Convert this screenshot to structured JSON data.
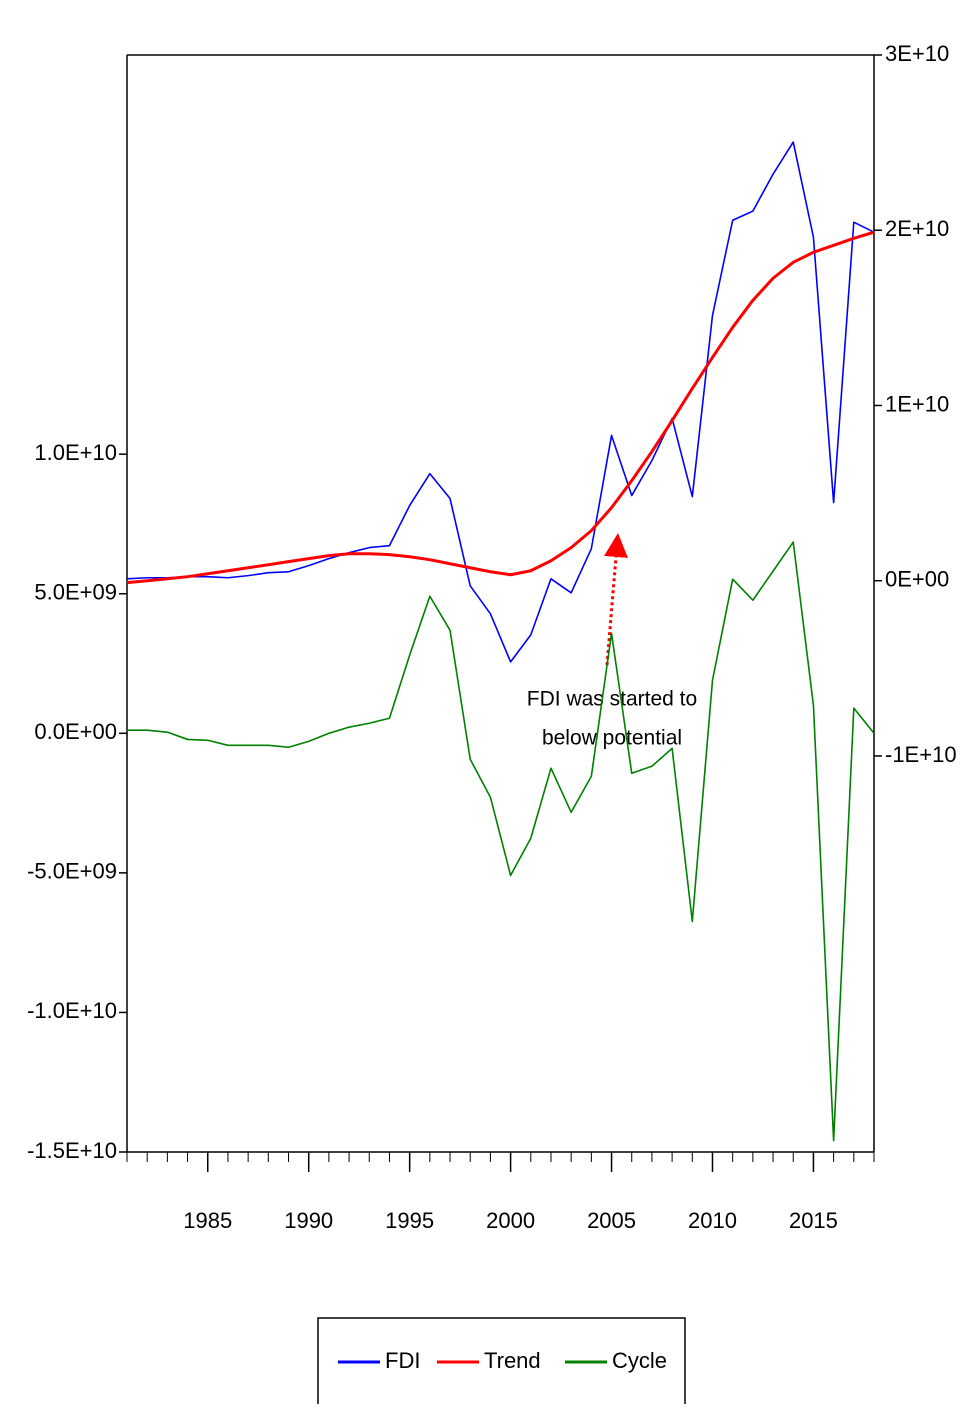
{
  "chart_data": {
    "type": "line",
    "x": [
      1981,
      1982,
      1983,
      1984,
      1985,
      1986,
      1987,
      1988,
      1989,
      1990,
      1991,
      1992,
      1993,
      1994,
      1995,
      1996,
      1997,
      1998,
      1999,
      2000,
      2001,
      2002,
      2003,
      2004,
      2005,
      2006,
      2007,
      2008,
      2009,
      2010,
      2011,
      2012,
      2013,
      2014,
      2015,
      2016,
      2017,
      2018
    ],
    "xlim": [
      1981,
      2018
    ],
    "xticks": [
      1985,
      1990,
      1995,
      2000,
      2005,
      2010,
      2015
    ],
    "ylim": [
      -15000000000.0,
      24300000000.0
    ],
    "yticks": [
      {
        "value": -15000000000.0,
        "label": "-1.5E+10"
      },
      {
        "value": -10000000000.0,
        "label": "-1.0E+10"
      },
      {
        "value": -5000000000.0,
        "label": "-5.0E+09"
      },
      {
        "value": 0,
        "label": "0.0E+00"
      },
      {
        "value": 5000000000.0,
        "label": "5.0E+09"
      },
      {
        "value": 10000000000.0,
        "label": "1.0E+10"
      }
    ],
    "y2lim": [
      -32600000000.0,
      30000000000.0
    ],
    "y2ticks": [
      {
        "value": -10000000000.0,
        "label": "-1E+10"
      },
      {
        "value": 0,
        "label": "0E+00"
      },
      {
        "value": 10000000000.0,
        "label": "1E+10"
      },
      {
        "value": 20000000000.0,
        "label": "2E+10"
      },
      {
        "value": 30000000000.0,
        "label": "3E+10"
      }
    ],
    "series": [
      {
        "name": "FDI",
        "color": "#0000ff",
        "axis": "y2",
        "values": [
          110000000.0,
          170000000.0,
          170000000.0,
          230000000.0,
          230000000.0,
          170000000.0,
          290000000.0,
          460000000.0,
          510000000.0,
          860000000.0,
          1260000000.0,
          1600000000.0,
          1890000000.0,
          2000000000.0,
          4290000000.0,
          6110000000.0,
          4690000000.0,
          -290000000.0,
          -1890000000.0,
          -4630000000.0,
          -3090000000.0,
          110000000.0,
          -690000000.0,
          1830000000.0,
          8290000000.0,
          4860000000.0,
          6860000000.0,
          9260000000.0,
          4800000000.0,
          15140000000.0,
          20570000000.0,
          21090000000.0,
          23200000000.0,
          25030000000.0,
          19600000000.0,
          4460000000.0,
          20460000000.0,
          19890000000.0
        ]
      },
      {
        "name": "Trend",
        "color": "#ff0000",
        "axis": "y2",
        "values": [
          -110000000.0,
          0,
          110000000.0,
          230000000.0,
          400000000.0,
          570000000.0,
          740000000.0,
          910000000.0,
          1090000000.0,
          1260000000.0,
          1430000000.0,
          1540000000.0,
          1540000000.0,
          1490000000.0,
          1370000000.0,
          1200000000.0,
          970000000.0,
          740000000.0,
          510000000.0,
          340000000.0,
          570000000.0,
          1140000000.0,
          1890000000.0,
          2860000000.0,
          4170000000.0,
          5710000000.0,
          7370000000.0,
          9140000000.0,
          10970000000.0,
          12740000000.0,
          14460000000.0,
          16000000000.0,
          17260000000.0,
          18170000000.0,
          18740000000.0,
          19140000000.0,
          19540000000.0,
          19890000000.0
        ]
      },
      {
        "name": "Cycle",
        "color": "#008000",
        "values": [
          110000000.0,
          110000000.0,
          40000000.0,
          -220000000.0,
          -250000000.0,
          -430000000.0,
          -430000000.0,
          -430000000.0,
          -500000000.0,
          -290000000.0,
          0,
          220000000.0,
          360000000.0,
          540000000.0,
          2800000000.0,
          4910000000.0,
          3690000000.0,
          -930000000.0,
          -2290000000.0,
          -5090000000.0,
          -3760000000.0,
          -1250000000.0,
          -2830000000.0,
          -1540000000.0,
          3580000000.0,
          -1430000000.0,
          -1180000000.0,
          -540000000.0,
          -6740000000.0,
          1900000000.0,
          5520000000.0,
          4770000000.0,
          5810000000.0,
          6850000000.0,
          1000000000.0,
          -14590000000.0,
          900000000.0,
          0
        ]
      }
    ],
    "annotation": [
      "FDI was started to",
      "below potential"
    ]
  }
}
